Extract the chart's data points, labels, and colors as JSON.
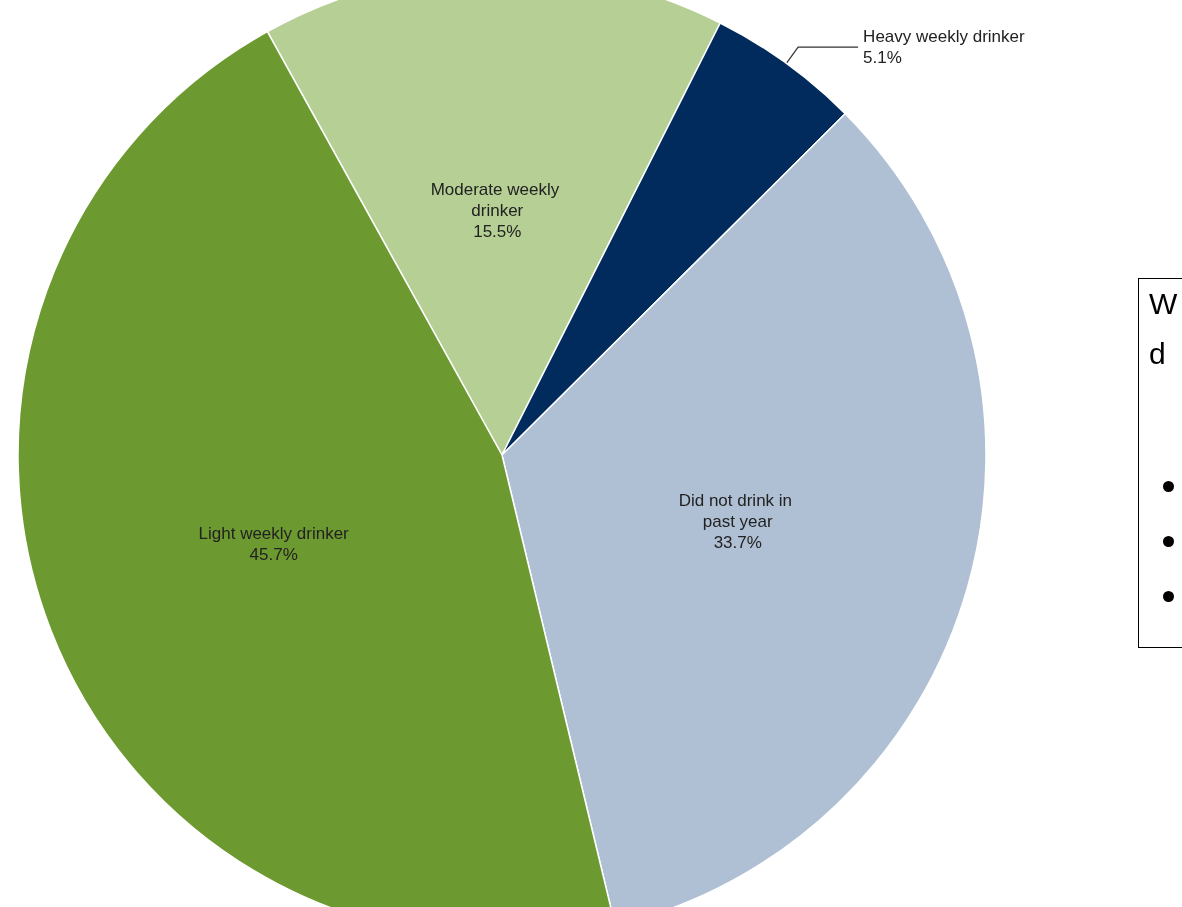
{
  "chart_data": {
    "type": "pie",
    "categories": [
      "Moderate weekly drinker",
      "Heavy weekly drinker",
      "Did not drink in past year",
      "Light weekly drinker"
    ],
    "values": [
      15.5,
      5.1,
      33.7,
      45.7
    ],
    "colors": [
      "#b5cf95",
      "#002b5c",
      "#b0c0d4",
      "#6d9a30"
    ],
    "value_labels": [
      "15.5%",
      "5.1%",
      "33.7%",
      "45.7%"
    ],
    "legend": false,
    "annotations": [
      "W",
      "d"
    ]
  }
}
